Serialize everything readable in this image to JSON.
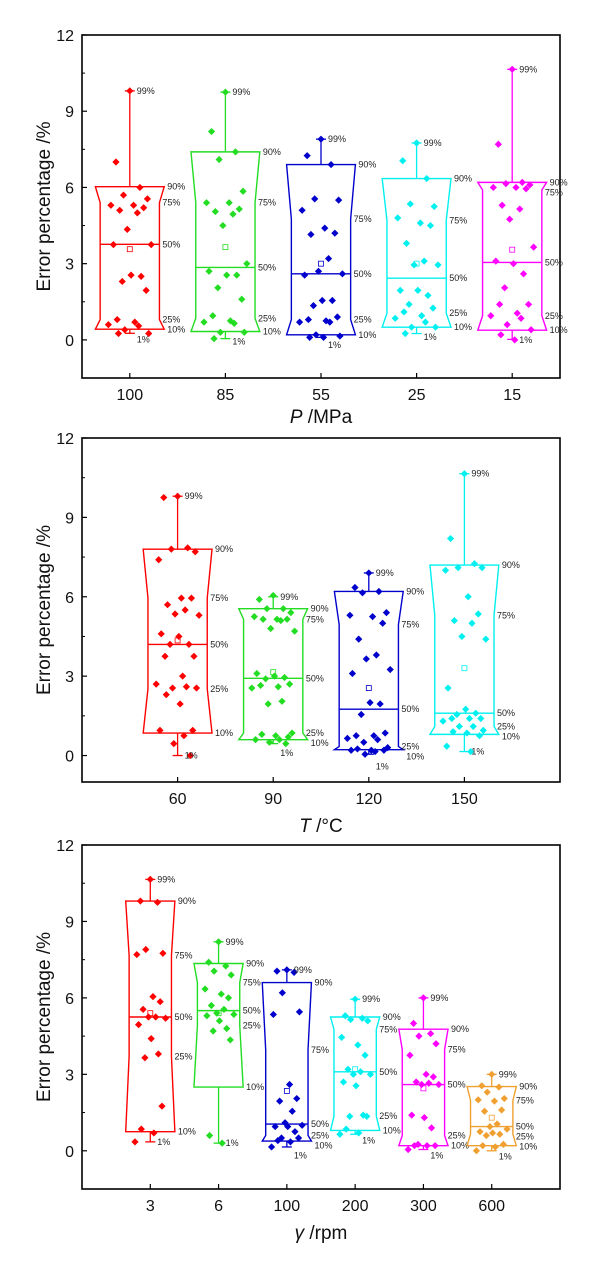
{
  "chart_data": [
    {
      "type": "box",
      "xlabel": "P /MPa",
      "xlabel_var": "P",
      "xlabel_unit": " /MPa",
      "ylabel": "Error percentage /%",
      "ylim": [
        -1.5,
        12
      ],
      "yticks": [
        0,
        3,
        6,
        9,
        12
      ],
      "grid": false,
      "percentile_labels": [
        "99%",
        "90%",
        "75%",
        "50%",
        "25%",
        "10%",
        "1%"
      ],
      "categories": [
        "100",
        "85",
        "55",
        "25",
        "15"
      ],
      "series": [
        {
          "category": "100",
          "color": "#ff0000",
          "p1": 0.26,
          "p10": 0.42,
          "p25": 0.8,
          "p50": 3.76,
          "p75": 5.4,
          "p90": 6.03,
          "p99": 9.8,
          "mean": 3.57,
          "points": [
            9.8,
            7.0,
            6.0,
            5.7,
            5.55,
            5.3,
            5.3,
            5.2,
            5.1,
            5.0,
            4.35,
            3.75,
            3.75,
            2.55,
            2.5,
            2.3,
            1.95,
            0.8,
            0.7,
            0.6,
            0.55,
            0.4,
            0.25,
            0.25
          ]
        },
        {
          "category": "85",
          "color": "#22dd22",
          "p1": 0.05,
          "p10": 0.33,
          "p25": 0.85,
          "p50": 2.85,
          "p75": 5.4,
          "p90": 7.4,
          "p99": 9.75,
          "mean": 3.65,
          "points": [
            9.75,
            8.2,
            7.4,
            7.1,
            5.85,
            5.4,
            5.4,
            5.15,
            5.05,
            4.95,
            4.5,
            3.0,
            2.7,
            2.55,
            2.55,
            2.05,
            1.6,
            0.95,
            0.75,
            0.7,
            0.65,
            0.3,
            0.3,
            0.05
          ]
        },
        {
          "category": "55",
          "color": "#0000cc",
          "p1": 0.1,
          "p10": 0.2,
          "p25": 0.8,
          "p50": 2.6,
          "p75": 4.75,
          "p90": 6.9,
          "p99": 7.9,
          "mean": 3.0,
          "points": [
            7.9,
            7.25,
            6.9,
            5.55,
            5.5,
            5.1,
            4.4,
            4.2,
            4.15,
            3.2,
            2.7,
            2.6,
            2.55,
            1.55,
            1.55,
            1.35,
            0.9,
            0.8,
            0.75,
            0.7,
            0.7,
            0.2,
            0.15,
            0.1,
            0.1
          ]
        },
        {
          "category": "25",
          "color": "#00f0f0",
          "p1": 0.25,
          "p10": 0.5,
          "p25": 1.05,
          "p50": 2.43,
          "p75": 4.7,
          "p90": 6.35,
          "p99": 7.75,
          "mean": 3.0,
          "points": [
            7.75,
            7.05,
            6.35,
            5.35,
            5.25,
            4.8,
            4.6,
            4.5,
            3.8,
            3.1,
            2.95,
            2.95,
            1.95,
            1.95,
            1.75,
            1.4,
            1.25,
            1.1,
            0.95,
            0.85,
            0.7,
            0.5,
            0.5,
            0.25
          ]
        },
        {
          "category": "15",
          "color": "#ff00ff",
          "p1": 0.02,
          "p10": 0.38,
          "p25": 0.95,
          "p50": 3.05,
          "p75": 5.9,
          "p90": 6.2,
          "p99": 10.65,
          "mean": 3.55,
          "points": [
            10.65,
            7.7,
            6.2,
            6.15,
            6.1,
            6.0,
            6.0,
            5.95,
            5.3,
            5.15,
            4.75,
            3.65,
            3.1,
            3.0,
            2.6,
            2.05,
            1.4,
            1.4,
            1.05,
            0.95,
            0.85,
            0.6,
            0.4,
            0.2,
            0.0
          ]
        }
      ]
    },
    {
      "type": "box",
      "xlabel": "T /°C",
      "xlabel_var": "T",
      "xlabel_unit": " /°C",
      "ylabel": "Error percentage /%",
      "ylim": [
        -1,
        12
      ],
      "yticks": [
        0,
        3,
        6,
        9,
        12
      ],
      "grid": false,
      "percentile_labels": [
        "99%",
        "90%",
        "75%",
        "50%",
        "25%",
        "10%",
        "1%"
      ],
      "categories": [
        "60",
        "90",
        "120",
        "150"
      ],
      "series": [
        {
          "category": "60",
          "color": "#ff0000",
          "p1": 0.0,
          "p10": 0.85,
          "p25": 2.52,
          "p50": 4.2,
          "p75": 5.95,
          "p90": 7.8,
          "p99": 9.8,
          "mean": 4.35,
          "points": [
            9.8,
            9.75,
            7.85,
            7.8,
            7.7,
            7.4,
            5.95,
            5.95,
            5.7,
            5.5,
            5.35,
            5.3,
            4.6,
            4.5,
            4.2,
            4.2,
            3.75,
            3.75,
            3.0,
            2.7,
            2.6,
            2.55,
            2.55,
            2.3,
            1.95,
            0.95,
            0.95,
            0.75,
            0.45,
            0.0
          ]
        },
        {
          "category": "90",
          "color": "#22dd22",
          "p1": 0.45,
          "p10": 0.6,
          "p25": 0.85,
          "p50": 2.92,
          "p75": 5.15,
          "p90": 5.55,
          "p99": 6.0,
          "mean": 3.15,
          "points": [
            6.05,
            5.9,
            5.55,
            5.55,
            5.4,
            5.25,
            5.15,
            5.15,
            5.15,
            5.1,
            4.8,
            4.7,
            3.1,
            3.0,
            2.95,
            2.9,
            2.7,
            2.65,
            2.6,
            2.55,
            2.05,
            1.95,
            0.85,
            0.8,
            0.75,
            0.7,
            0.6,
            0.6,
            0.5,
            0.45
          ]
        },
        {
          "category": "120",
          "color": "#0000cc",
          "p1": 0.05,
          "p10": 0.22,
          "p25": 0.34,
          "p50": 1.75,
          "p75": 4.95,
          "p90": 6.2,
          "p99": 6.9,
          "mean": 2.55,
          "points": [
            6.9,
            6.35,
            6.2,
            6.15,
            5.4,
            5.3,
            5.25,
            5.0,
            4.4,
            3.8,
            3.65,
            3.25,
            3.1,
            2.0,
            1.95,
            1.55,
            0.85,
            0.75,
            0.75,
            0.65,
            0.6,
            0.5,
            0.3,
            0.25,
            0.2,
            0.2,
            0.2,
            0.15,
            0.05
          ]
        },
        {
          "category": "150",
          "color": "#00f0f0",
          "p1": 0.15,
          "p10": 0.8,
          "p25": 1.1,
          "p50": 1.6,
          "p75": 5.3,
          "p90": 7.2,
          "p99": 10.65,
          "mean": 3.3,
          "points": [
            10.65,
            8.2,
            7.25,
            7.1,
            7.1,
            7.0,
            6.0,
            5.35,
            5.1,
            5.0,
            4.5,
            4.4,
            2.55,
            1.75,
            1.6,
            1.55,
            1.4,
            1.4,
            1.4,
            1.3,
            1.1,
            1.1,
            0.95,
            0.9,
            0.85,
            0.75,
            0.35,
            0.15
          ]
        }
      ]
    },
    {
      "type": "box",
      "xlabel": "γ /rpm",
      "xlabel_var": "γ",
      "xlabel_unit": " /rpm",
      "ylabel": "Error percentage /%",
      "ylim": [
        -1.5,
        12
      ],
      "yticks": [
        0,
        3,
        6,
        9,
        12
      ],
      "grid": false,
      "percentile_labels": [
        "99%",
        "90%",
        "75%",
        "50%",
        "25%",
        "10%",
        "1%"
      ],
      "categories": [
        "3",
        "6",
        "100",
        "200",
        "300",
        "600"
      ],
      "series": [
        {
          "category": "3",
          "color": "#ff0000",
          "p1": 0.35,
          "p10": 0.75,
          "p25": 3.7,
          "p50": 5.25,
          "p75": 7.67,
          "p90": 9.8,
          "p99": 10.65,
          "mean": 5.4,
          "points": [
            10.65,
            9.8,
            9.75,
            7.9,
            7.75,
            7.7,
            6.05,
            5.85,
            5.55,
            5.25,
            5.25,
            5.2,
            4.95,
            4.4,
            3.8,
            3.65,
            1.75,
            0.85,
            0.7,
            0.35
          ]
        },
        {
          "category": "6",
          "color": "#22dd22",
          "p1": 0.3,
          "p10": 2.5,
          "p25": 4.92,
          "p50": 5.5,
          "p75": 6.6,
          "p90": 7.35,
          "p99": 8.2,
          "mean": 5.4,
          "points": [
            8.2,
            7.4,
            7.25,
            7.05,
            6.9,
            6.35,
            6.15,
            6.0,
            5.7,
            5.55,
            5.4,
            5.35,
            5.3,
            5.1,
            4.8,
            4.7,
            4.35,
            0.6,
            0.3
          ]
        },
        {
          "category": "100",
          "color": "#0000cc",
          "p1": 0.15,
          "p10": 0.38,
          "p25": 0.6,
          "p50": 1.05,
          "p75": 3.96,
          "p90": 6.6,
          "p99": 7.1,
          "mean": 2.35,
          "points": [
            7.1,
            7.05,
            7.0,
            6.2,
            5.45,
            5.35,
            2.6,
            2.05,
            1.95,
            1.55,
            1.1,
            1.0,
            0.95,
            0.95,
            0.75,
            0.5,
            0.5,
            0.4,
            0.35,
            0.15
          ]
        },
        {
          "category": "200",
          "color": "#00f0f0",
          "p1": 0.65,
          "p10": 0.8,
          "p25": 1.36,
          "p50": 3.1,
          "p75": 4.76,
          "p90": 5.25,
          "p99": 5.95,
          "mean": 3.2,
          "points": [
            5.95,
            5.3,
            5.2,
            5.15,
            5.1,
            4.45,
            4.15,
            3.75,
            3.2,
            3.1,
            3.0,
            3.0,
            2.7,
            2.55,
            1.4,
            1.35,
            1.35,
            0.85,
            0.7,
            0.65
          ]
        },
        {
          "category": "300",
          "color": "#ff00ff",
          "p1": 0.05,
          "p10": 0.2,
          "p25": 0.6,
          "p50": 2.6,
          "p75": 3.97,
          "p90": 4.77,
          "p99": 6.0,
          "mean": 2.45,
          "points": [
            6.0,
            5.0,
            4.6,
            4.5,
            4.2,
            3.75,
            3.0,
            2.9,
            2.7,
            2.65,
            2.6,
            2.6,
            1.4,
            1.3,
            0.9,
            0.25,
            0.2,
            0.2,
            0.2,
            0.05
          ]
        },
        {
          "category": "600",
          "color": "#f0a030",
          "p1": 0.0,
          "p10": 0.2,
          "p25": 0.66,
          "p50": 0.95,
          "p75": 1.97,
          "p90": 2.52,
          "p99": 3.0,
          "mean": 1.3,
          "points": [
            3.0,
            2.55,
            2.5,
            2.3,
            2.05,
            2.0,
            1.95,
            1.6,
            1.55,
            1.05,
            0.95,
            0.85,
            0.75,
            0.7,
            0.65,
            0.6,
            0.25,
            0.2,
            0.15,
            0.0
          ]
        }
      ]
    }
  ]
}
